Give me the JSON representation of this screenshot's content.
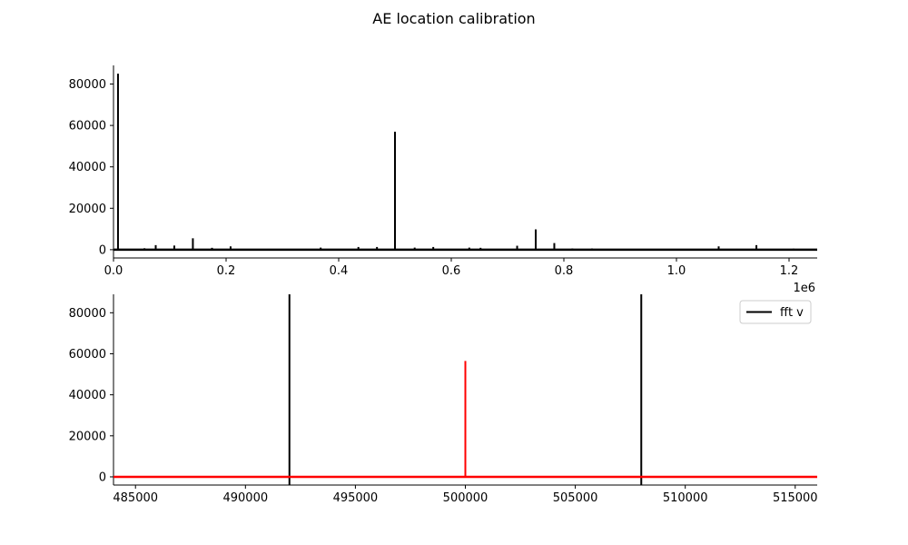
{
  "figure_title": "AE location calibration",
  "colors": {
    "primary_series": "#000000",
    "highlight_series": "#ff0000",
    "axis": "#000000"
  },
  "chart_data": [
    {
      "type": "line",
      "title": "",
      "xlabel": "",
      "ylabel": "",
      "xlim": [
        0,
        1250000
      ],
      "ylim": [
        -4000,
        89000
      ],
      "x_offset_label": "1e6",
      "x_ticks": [
        0,
        200000,
        400000,
        600000,
        800000,
        1000000,
        1200000
      ],
      "x_tick_labels": [
        "0.0",
        "0.2",
        "0.4",
        "0.6",
        "0.8",
        "1.0",
        "1.2"
      ],
      "y_ticks": [
        0,
        20000,
        40000,
        60000,
        80000
      ],
      "y_tick_labels": [
        "0",
        "20000",
        "40000",
        "60000",
        "80000"
      ],
      "series": [
        {
          "color": "#000000",
          "peaks_x": [
            8000,
            32000,
            55000,
            75000,
            108000,
            141000,
            175000,
            208000,
            240000,
            275000,
            300000,
            342000,
            368000,
            400000,
            435000,
            468000,
            500000,
            535000,
            568000,
            600000,
            632000,
            652000,
            668000,
            700000,
            717000,
            750000,
            783000,
            815000,
            850000,
            883000,
            917000,
            940000,
            985000,
            1050000,
            1075000,
            1108000,
            1142000,
            1208000
          ],
          "peaks_y": [
            85000,
            300,
            700,
            2200,
            2000,
            5500,
            900,
            1600,
            300,
            400,
            300,
            400,
            1000,
            300,
            1300,
            1300,
            57000,
            1000,
            1300,
            300,
            1000,
            900,
            300,
            300,
            1900,
            9800,
            3200,
            600,
            600,
            300,
            300,
            300,
            300,
            300,
            1600,
            400,
            2200,
            500
          ],
          "baseline": 0
        }
      ]
    },
    {
      "type": "line",
      "title": "",
      "xlabel": "",
      "ylabel": "",
      "xlim": [
        484000,
        516000
      ],
      "ylim": [
        -4000,
        89000
      ],
      "x_ticks": [
        485000,
        490000,
        495000,
        500000,
        505000,
        510000,
        515000
      ],
      "x_tick_labels": [
        "485000",
        "490000",
        "495000",
        "500000",
        "505000",
        "510000",
        "515000"
      ],
      "y_ticks": [
        0,
        20000,
        40000,
        60000,
        80000
      ],
      "y_tick_labels": [
        "0",
        "20000",
        "40000",
        "60000",
        "80000"
      ],
      "legend": {
        "placement": "top-right",
        "entries": [
          {
            "label": "fft v",
            "color": "#000000"
          }
        ]
      },
      "vertical_lines": [
        {
          "x": 492000,
          "color": "#000000"
        },
        {
          "x": 508000,
          "color": "#000000"
        }
      ],
      "series": [
        {
          "name": "fft v",
          "color": "#ff0000",
          "peaks_x": [
            492700,
            495600,
            499400,
            500000,
            500400,
            503200,
            505500,
            506600,
            511500
          ],
          "peaks_y": [
            300,
            300,
            300,
            56500,
            300,
            300,
            300,
            300,
            300
          ],
          "baseline": 0
        }
      ]
    }
  ]
}
